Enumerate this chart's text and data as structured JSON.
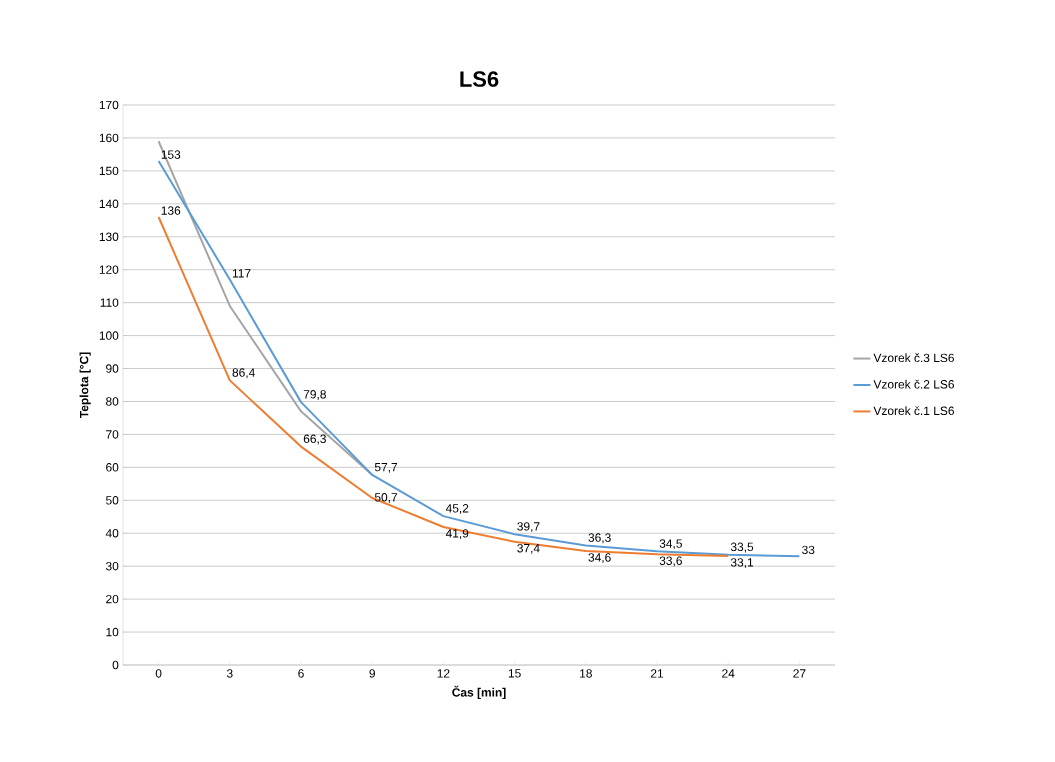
{
  "chart_data": {
    "type": "line",
    "title": "LS6",
    "xlabel": "Čas [min]",
    "ylabel": "Teplota [°C]",
    "categories": [
      "0",
      "3",
      "6",
      "9",
      "12",
      "15",
      "18",
      "21",
      "24",
      "27"
    ],
    "ylim": [
      0,
      170
    ],
    "yticks": [
      0,
      10,
      20,
      30,
      40,
      50,
      60,
      70,
      80,
      90,
      100,
      110,
      120,
      130,
      140,
      150,
      160,
      170
    ],
    "grid": "y",
    "legend": "right",
    "marker": "none",
    "line_style": "solid",
    "series": [
      {
        "name": "Vzorek č.3 LS6",
        "color": "#a5a5a5",
        "values": [
          159,
          109,
          77,
          57.7,
          null,
          null,
          null,
          null,
          null,
          null
        ]
      },
      {
        "name": "Vzorek č.2 LS6",
        "color": "#5b9bd5",
        "values": [
          153,
          117,
          79.8,
          57.7,
          45.2,
          39.7,
          36.3,
          34.5,
          33.5,
          33
        ],
        "value_labels": [
          "153",
          "117",
          "79,8",
          "57,7",
          "45,2",
          "39,7",
          "36,3",
          "34,5",
          "33,5",
          "33"
        ]
      },
      {
        "name": "Vzorek č.1 LS6",
        "color": "#ed7d31",
        "values": [
          136,
          86.4,
          66.3,
          50.7,
          41.9,
          37.4,
          34.6,
          33.6,
          33.1,
          null
        ],
        "value_labels": [
          "136",
          "86,4",
          "66,3",
          "50,7",
          "41,9",
          "37,4",
          "34,6",
          "33,6",
          "33,1",
          null
        ]
      }
    ]
  }
}
